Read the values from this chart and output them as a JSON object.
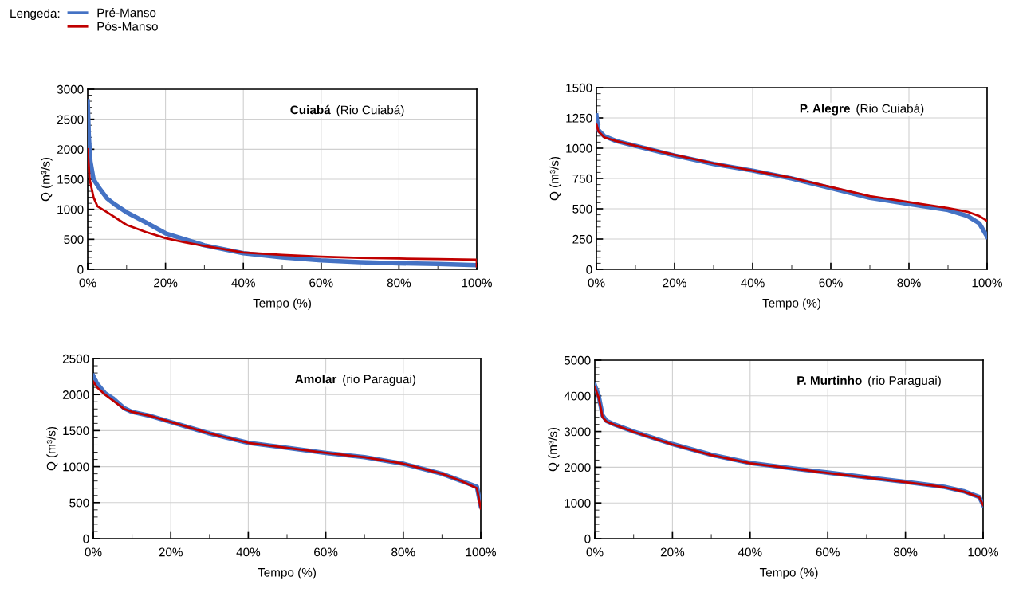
{
  "chart_data": [
    {
      "type": "line",
      "title": "Cuiabá",
      "subtitle": "(Rio Cuiabá)",
      "xlabel": "Tempo (%)",
      "ylabel": "Q (m³/s)",
      "legend": "top left",
      "legend_title": "Lengeda:",
      "grid": true,
      "xlim": [
        0,
        100
      ],
      "xticks": [
        {
          "value": 0,
          "label": "0%"
        },
        {
          "value": 20,
          "label": "20%"
        },
        {
          "value": 40,
          "label": "40%"
        },
        {
          "value": 60,
          "label": "60%"
        },
        {
          "value": 80,
          "label": "80%"
        },
        {
          "value": 100,
          "label": "100%"
        }
      ],
      "ylim": [
        0,
        3000
      ],
      "yticks": [
        0,
        500,
        1000,
        1500,
        2000,
        2500,
        3000
      ],
      "series": [
        {
          "name": "Pré-Manso",
          "color": "#4472c4",
          "x": [
            0,
            0.3,
            0.7,
            1.5,
            3,
            5,
            7,
            10,
            15,
            20,
            25,
            30,
            40,
            50,
            60,
            70,
            80,
            90,
            100
          ],
          "values": [
            2800,
            2200,
            1800,
            1500,
            1350,
            1180,
            1080,
            950,
            780,
            600,
            500,
            400,
            270,
            200,
            150,
            120,
            100,
            90,
            70
          ]
        },
        {
          "name": "Pós-Manso",
          "color": "#c00000",
          "x": [
            0,
            0.5,
            1.5,
            2.5,
            5,
            10,
            15,
            20,
            25,
            30,
            40,
            50,
            60,
            70,
            80,
            90,
            100,
            100
          ],
          "values": [
            2000,
            1500,
            1200,
            1050,
            950,
            740,
            620,
            520,
            450,
            390,
            280,
            240,
            210,
            190,
            180,
            170,
            160,
            50
          ]
        }
      ]
    },
    {
      "type": "line",
      "title": "P. Alegre",
      "subtitle": "(Rio Cuiabá)",
      "xlabel": "Tempo (%)",
      "ylabel": "Q (m³/s)",
      "grid": true,
      "xlim": [
        0,
        100
      ],
      "xticks": [
        {
          "value": 0,
          "label": "0%"
        },
        {
          "value": 20,
          "label": "20%"
        },
        {
          "value": 40,
          "label": "40%"
        },
        {
          "value": 60,
          "label": "60%"
        },
        {
          "value": 80,
          "label": "80%"
        },
        {
          "value": 100,
          "label": "100%"
        }
      ],
      "ylim": [
        0,
        1500
      ],
      "yticks": [
        0,
        250,
        500,
        750,
        1000,
        1250,
        1500
      ],
      "series": [
        {
          "color": "#4472c4",
          "x": [
            0,
            0.5,
            2,
            5,
            10,
            20,
            30,
            40,
            50,
            60,
            70,
            80,
            90,
            95,
            98,
            100
          ],
          "values": [
            1270,
            1150,
            1100,
            1060,
            1020,
            940,
            870,
            815,
            750,
            670,
            590,
            540,
            490,
            440,
            380,
            270
          ]
        },
        {
          "color": "#c00000",
          "x": [
            0,
            0.5,
            2,
            5,
            10,
            20,
            30,
            40,
            50,
            60,
            70,
            80,
            90,
            95,
            98,
            100
          ],
          "values": [
            1200,
            1140,
            1090,
            1060,
            1020,
            945,
            875,
            815,
            755,
            680,
            605,
            555,
            505,
            475,
            440,
            400
          ]
        }
      ]
    },
    {
      "type": "line",
      "title": "Amolar",
      "subtitle": "(rio Paraguai)",
      "xlabel": "Tempo (%)",
      "ylabel": "Q (m³/s)",
      "grid": true,
      "xlim": [
        0,
        100
      ],
      "xticks": [
        {
          "value": 0,
          "label": "0%"
        },
        {
          "value": 20,
          "label": "20%"
        },
        {
          "value": 40,
          "label": "40%"
        },
        {
          "value": 60,
          "label": "60%"
        },
        {
          "value": 80,
          "label": "80%"
        },
        {
          "value": 100,
          "label": "100%"
        }
      ],
      "ylim": [
        0,
        2500
      ],
      "yticks": [
        0,
        500,
        1000,
        1500,
        2000,
        2500
      ],
      "series": [
        {
          "color": "#4472c4",
          "x": [
            0,
            1,
            3,
            5,
            8,
            10,
            15,
            20,
            30,
            40,
            50,
            60,
            70,
            80,
            90,
            95,
            99,
            100
          ],
          "values": [
            2260,
            2150,
            2020,
            1950,
            1810,
            1760,
            1700,
            1620,
            1460,
            1330,
            1260,
            1190,
            1130,
            1040,
            900,
            800,
            720,
            450
          ]
        },
        {
          "color": "#c00000",
          "x": [
            0,
            1,
            3,
            5,
            8,
            10,
            15,
            20,
            30,
            40,
            50,
            60,
            70,
            80,
            90,
            95,
            99,
            100
          ],
          "values": [
            2180,
            2100,
            2000,
            1920,
            1800,
            1760,
            1700,
            1620,
            1460,
            1330,
            1260,
            1190,
            1130,
            1040,
            900,
            800,
            700,
            420
          ]
        }
      ]
    },
    {
      "type": "line",
      "title": "P. Murtinho",
      "subtitle": "(rio Paraguai)",
      "xlabel": "Tempo (%)",
      "ylabel": "Q (m³/s)",
      "grid": true,
      "xlim": [
        0,
        100
      ],
      "xticks": [
        {
          "value": 0,
          "label": "0%"
        },
        {
          "value": 20,
          "label": "20%"
        },
        {
          "value": 40,
          "label": "40%"
        },
        {
          "value": 60,
          "label": "60%"
        },
        {
          "value": 80,
          "label": "80%"
        },
        {
          "value": 100,
          "label": "100%"
        }
      ],
      "ylim": [
        0,
        5000
      ],
      "yticks": [
        0,
        1000,
        2000,
        3000,
        4000,
        5000
      ],
      "series": [
        {
          "color": "#4472c4",
          "x": [
            0,
            1,
            2,
            3,
            5,
            10,
            20,
            30,
            40,
            50,
            60,
            70,
            80,
            90,
            95,
            99,
            100
          ],
          "values": [
            4300,
            4000,
            3450,
            3300,
            3200,
            3000,
            2650,
            2350,
            2120,
            1980,
            1850,
            1720,
            1590,
            1450,
            1330,
            1170,
            950
          ]
        },
        {
          "color": "#c00000",
          "x": [
            0,
            1,
            2,
            3,
            5,
            10,
            20,
            30,
            40,
            50,
            60,
            70,
            80,
            90,
            95,
            99,
            100
          ],
          "values": [
            4250,
            3950,
            3400,
            3280,
            3190,
            2990,
            2640,
            2340,
            2110,
            1970,
            1840,
            1710,
            1580,
            1440,
            1320,
            1160,
            940
          ]
        }
      ]
    }
  ]
}
